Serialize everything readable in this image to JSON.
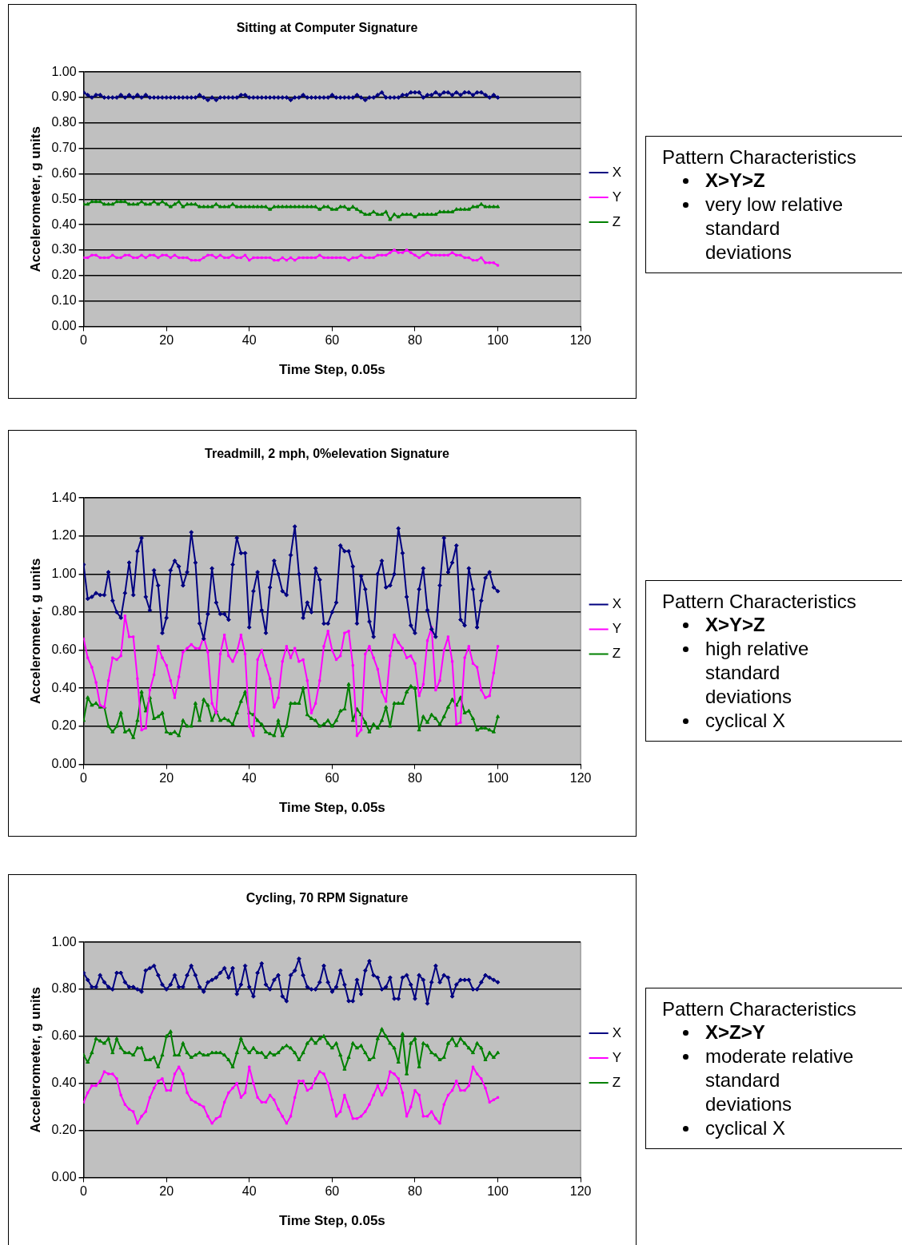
{
  "chart_data": [
    {
      "type": "line",
      "title": "Sitting at Computer Signature",
      "xlabel": "Time Step, 0.05s",
      "ylabel": "Accelerometer, g units",
      "x": [
        0,
        1,
        2,
        3,
        4,
        5,
        6,
        7,
        8,
        9,
        10,
        11,
        12,
        13,
        14,
        15,
        16,
        17,
        18,
        19,
        20,
        21,
        22,
        23,
        24,
        25,
        26,
        27,
        28,
        29,
        30,
        31,
        32,
        33,
        34,
        35,
        36,
        37,
        38,
        39,
        40,
        41,
        42,
        43,
        44,
        45,
        46,
        47,
        48,
        49,
        50,
        51,
        52,
        53,
        54,
        55,
        56,
        57,
        58,
        59,
        60,
        61,
        62,
        63,
        64,
        65,
        66,
        67,
        68,
        69,
        70,
        71,
        72,
        73,
        74,
        75,
        76,
        77,
        78,
        79,
        80,
        81,
        82,
        83,
        84,
        85,
        86,
        87,
        88,
        89,
        90,
        91,
        92,
        93,
        94,
        95,
        96,
        97,
        98,
        99,
        100
      ],
      "xlim": [
        0,
        120
      ],
      "xticks": [
        0,
        20,
        40,
        60,
        80,
        100,
        120
      ],
      "ylim": [
        0,
        1
      ],
      "yticks": [
        {
          "value": 0,
          "label": "0.00"
        },
        {
          "value": 0.1,
          "label": "0.10"
        },
        {
          "value": 0.2,
          "label": "0.20"
        },
        {
          "value": 0.3,
          "label": "0.30"
        },
        {
          "value": 0.4,
          "label": "0.40"
        },
        {
          "value": 0.5,
          "label": "0.50"
        },
        {
          "value": 0.6,
          "label": "0.60"
        },
        {
          "value": 0.7,
          "label": "0.70"
        },
        {
          "value": 0.8,
          "label": "0.80"
        },
        {
          "value": 0.9,
          "label": "0.90"
        },
        {
          "value": 1,
          "label": "1.00"
        }
      ],
      "grid": "y",
      "legend": "right",
      "line_style": "solid",
      "series": [
        {
          "name": "X",
          "color": "#000080",
          "marker": "diamond",
          "values": [
            0.92,
            0.91,
            0.9,
            0.91,
            0.91,
            0.9,
            0.9,
            0.9,
            0.9,
            0.91,
            0.9,
            0.91,
            0.9,
            0.91,
            0.9,
            0.91,
            0.9,
            0.9,
            0.9,
            0.9,
            0.9,
            0.9,
            0.9,
            0.9,
            0.9,
            0.9,
            0.9,
            0.9,
            0.91,
            0.9,
            0.89,
            0.9,
            0.89,
            0.9,
            0.9,
            0.9,
            0.9,
            0.9,
            0.91,
            0.91,
            0.9,
            0.9,
            0.9,
            0.9,
            0.9,
            0.9,
            0.9,
            0.9,
            0.9,
            0.9,
            0.89,
            0.9,
            0.9,
            0.91,
            0.9,
            0.9,
            0.9,
            0.9,
            0.9,
            0.9,
            0.91,
            0.9,
            0.9,
            0.9,
            0.9,
            0.9,
            0.91,
            0.9,
            0.89,
            0.9,
            0.9,
            0.91,
            0.92,
            0.9,
            0.9,
            0.9,
            0.9,
            0.91,
            0.91,
            0.92,
            0.92,
            0.92,
            0.9,
            0.91,
            0.91,
            0.92,
            0.91,
            0.92,
            0.92,
            0.91,
            0.92,
            0.91,
            0.92,
            0.92,
            0.91,
            0.92,
            0.92,
            0.91,
            0.9,
            0.91,
            0.9
          ]
        },
        {
          "name": "Y",
          "color": "#ff00ff",
          "marker": "square",
          "values": [
            0.27,
            0.27,
            0.28,
            0.28,
            0.27,
            0.27,
            0.27,
            0.28,
            0.27,
            0.27,
            0.28,
            0.28,
            0.27,
            0.27,
            0.28,
            0.27,
            0.28,
            0.28,
            0.27,
            0.28,
            0.28,
            0.27,
            0.28,
            0.27,
            0.27,
            0.27,
            0.26,
            0.26,
            0.26,
            0.27,
            0.28,
            0.28,
            0.27,
            0.28,
            0.27,
            0.27,
            0.28,
            0.27,
            0.27,
            0.28,
            0.26,
            0.27,
            0.27,
            0.27,
            0.27,
            0.27,
            0.26,
            0.26,
            0.27,
            0.26,
            0.27,
            0.26,
            0.27,
            0.27,
            0.27,
            0.27,
            0.27,
            0.28,
            0.27,
            0.27,
            0.27,
            0.27,
            0.27,
            0.27,
            0.26,
            0.27,
            0.27,
            0.28,
            0.27,
            0.27,
            0.27,
            0.28,
            0.28,
            0.28,
            0.29,
            0.3,
            0.29,
            0.29,
            0.3,
            0.29,
            0.28,
            0.27,
            0.28,
            0.29,
            0.28,
            0.28,
            0.28,
            0.28,
            0.28,
            0.29,
            0.28,
            0.28,
            0.27,
            0.27,
            0.26,
            0.26,
            0.27,
            0.25,
            0.25,
            0.25,
            0.24
          ]
        },
        {
          "name": "Z",
          "color": "#008000",
          "marker": "triangle",
          "values": [
            0.48,
            0.48,
            0.49,
            0.49,
            0.49,
            0.48,
            0.48,
            0.48,
            0.49,
            0.49,
            0.49,
            0.48,
            0.48,
            0.48,
            0.49,
            0.48,
            0.48,
            0.49,
            0.48,
            0.49,
            0.48,
            0.47,
            0.48,
            0.49,
            0.47,
            0.48,
            0.48,
            0.48,
            0.47,
            0.47,
            0.47,
            0.47,
            0.48,
            0.47,
            0.47,
            0.47,
            0.48,
            0.47,
            0.47,
            0.47,
            0.47,
            0.47,
            0.47,
            0.47,
            0.47,
            0.46,
            0.47,
            0.47,
            0.47,
            0.47,
            0.47,
            0.47,
            0.47,
            0.47,
            0.47,
            0.47,
            0.47,
            0.46,
            0.47,
            0.47,
            0.46,
            0.46,
            0.47,
            0.47,
            0.46,
            0.47,
            0.46,
            0.45,
            0.44,
            0.44,
            0.45,
            0.44,
            0.44,
            0.45,
            0.42,
            0.44,
            0.43,
            0.44,
            0.44,
            0.44,
            0.43,
            0.44,
            0.44,
            0.44,
            0.44,
            0.44,
            0.45,
            0.45,
            0.45,
            0.45,
            0.46,
            0.46,
            0.46,
            0.46,
            0.47,
            0.47,
            0.48,
            0.47,
            0.47,
            0.47,
            0.47
          ]
        }
      ]
    },
    {
      "type": "other",
      "title": "Pattern Characteristics",
      "annotations": [
        "X>Y>Z",
        "very low relative standard deviations"
      ]
    },
    {
      "type": "line",
      "title": "Treadmill, 2 mph, 0%elevation Signature",
      "xlabel": "Time Step, 0.05s",
      "ylabel": "Accelerometer, g units",
      "x": [
        0,
        1,
        2,
        3,
        4,
        5,
        6,
        7,
        8,
        9,
        10,
        11,
        12,
        13,
        14,
        15,
        16,
        17,
        18,
        19,
        20,
        21,
        22,
        23,
        24,
        25,
        26,
        27,
        28,
        29,
        30,
        31,
        32,
        33,
        34,
        35,
        36,
        37,
        38,
        39,
        40,
        41,
        42,
        43,
        44,
        45,
        46,
        47,
        48,
        49,
        50,
        51,
        52,
        53,
        54,
        55,
        56,
        57,
        58,
        59,
        60,
        61,
        62,
        63,
        64,
        65,
        66,
        67,
        68,
        69,
        70,
        71,
        72,
        73,
        74,
        75,
        76,
        77,
        78,
        79,
        80,
        81,
        82,
        83,
        84,
        85,
        86,
        87,
        88,
        89,
        90,
        91,
        92,
        93,
        94,
        95,
        96,
        97,
        98,
        99,
        100
      ],
      "xlim": [
        0,
        120
      ],
      "xticks": [
        0,
        20,
        40,
        60,
        80,
        100,
        120
      ],
      "ylim": [
        0,
        1.4
      ],
      "yticks": [
        {
          "value": 0,
          "label": "0.00"
        },
        {
          "value": 0.2,
          "label": "0.20"
        },
        {
          "value": 0.4,
          "label": "0.40"
        },
        {
          "value": 0.6,
          "label": "0.60"
        },
        {
          "value": 0.8,
          "label": "0.80"
        },
        {
          "value": 1,
          "label": "1.00"
        },
        {
          "value": 1.2,
          "label": "1.20"
        },
        {
          "value": 1.4,
          "label": "1.40"
        }
      ],
      "grid": "y",
      "legend": "right",
      "line_style": "solid",
      "series": [
        {
          "name": "X",
          "color": "#000080",
          "marker": "diamond",
          "values": [
            1.05,
            0.87,
            0.88,
            0.9,
            0.89,
            0.89,
            1.01,
            0.86,
            0.8,
            0.77,
            0.9,
            1.06,
            0.89,
            1.12,
            1.19,
            0.88,
            0.81,
            1.02,
            0.94,
            0.69,
            0.77,
            1.02,
            1.07,
            1.04,
            0.94,
            1.01,
            1.22,
            1.06,
            0.74,
            0.66,
            0.79,
            1.03,
            0.85,
            0.79,
            0.79,
            0.76,
            1.05,
            1.19,
            1.11,
            1.11,
            0.72,
            0.91,
            1.01,
            0.81,
            0.69,
            0.93,
            1.07,
            1.0,
            0.91,
            0.89,
            1.1,
            1.25,
            1.0,
            0.77,
            0.85,
            0.8,
            1.03,
            0.97,
            0.74,
            0.74,
            0.8,
            0.85,
            1.15,
            1.12,
            1.12,
            1.04,
            0.74,
            0.99,
            0.92,
            0.75,
            0.67,
            1.0,
            1.07,
            0.93,
            0.94,
            1.0,
            1.24,
            1.11,
            0.88,
            0.73,
            0.69,
            0.92,
            1.03,
            0.81,
            0.71,
            0.67,
            0.94,
            1.19,
            1.01,
            1.06,
            1.15,
            0.76,
            0.73,
            1.03,
            0.92,
            0.72,
            0.86,
            0.98,
            1.01,
            0.93,
            0.91
          ]
        },
        {
          "name": "Y",
          "color": "#ff00ff",
          "marker": "square",
          "values": [
            0.66,
            0.56,
            0.51,
            0.43,
            0.31,
            0.3,
            0.44,
            0.56,
            0.55,
            0.57,
            0.78,
            0.67,
            0.67,
            0.45,
            0.18,
            0.19,
            0.39,
            0.47,
            0.62,
            0.56,
            0.52,
            0.44,
            0.35,
            0.46,
            0.59,
            0.61,
            0.63,
            0.61,
            0.61,
            0.67,
            0.59,
            0.32,
            0.27,
            0.58,
            0.68,
            0.57,
            0.54,
            0.59,
            0.68,
            0.58,
            0.2,
            0.15,
            0.55,
            0.6,
            0.52,
            0.45,
            0.3,
            0.35,
            0.54,
            0.62,
            0.56,
            0.61,
            0.54,
            0.55,
            0.44,
            0.27,
            0.32,
            0.44,
            0.62,
            0.7,
            0.6,
            0.55,
            0.57,
            0.69,
            0.7,
            0.52,
            0.15,
            0.18,
            0.58,
            0.62,
            0.56,
            0.5,
            0.38,
            0.33,
            0.57,
            0.68,
            0.64,
            0.61,
            0.56,
            0.57,
            0.53,
            0.36,
            0.42,
            0.65,
            0.72,
            0.39,
            0.44,
            0.6,
            0.67,
            0.54,
            0.21,
            0.22,
            0.56,
            0.62,
            0.53,
            0.51,
            0.39,
            0.35,
            0.36,
            0.48,
            0.62
          ]
        },
        {
          "name": "Z",
          "color": "#008000",
          "marker": "triangle",
          "values": [
            0.23,
            0.35,
            0.31,
            0.32,
            0.3,
            0.3,
            0.2,
            0.17,
            0.2,
            0.27,
            0.17,
            0.18,
            0.14,
            0.23,
            0.38,
            0.28,
            0.35,
            0.24,
            0.25,
            0.27,
            0.17,
            0.16,
            0.17,
            0.15,
            0.23,
            0.2,
            0.2,
            0.32,
            0.23,
            0.34,
            0.31,
            0.23,
            0.28,
            0.23,
            0.24,
            0.23,
            0.21,
            0.27,
            0.33,
            0.38,
            0.27,
            0.26,
            0.23,
            0.21,
            0.17,
            0.16,
            0.15,
            0.23,
            0.15,
            0.2,
            0.32,
            0.32,
            0.32,
            0.4,
            0.26,
            0.24,
            0.23,
            0.2,
            0.21,
            0.23,
            0.2,
            0.23,
            0.28,
            0.29,
            0.42,
            0.23,
            0.29,
            0.26,
            0.22,
            0.17,
            0.21,
            0.19,
            0.23,
            0.3,
            0.2,
            0.32,
            0.32,
            0.32,
            0.38,
            0.41,
            0.4,
            0.18,
            0.25,
            0.22,
            0.26,
            0.24,
            0.21,
            0.25,
            0.3,
            0.34,
            0.31,
            0.35,
            0.27,
            0.28,
            0.24,
            0.18,
            0.19,
            0.19,
            0.18,
            0.17,
            0.25
          ]
        }
      ]
    },
    {
      "type": "other",
      "title": "Pattern Characteristics",
      "annotations": [
        "X>Y>Z",
        "high relative standard deviations",
        "cyclical X"
      ]
    },
    {
      "type": "line",
      "title": "Cycling, 70 RPM Signature",
      "xlabel": "Time Step, 0.05s",
      "ylabel": "Accelerometer, g units",
      "x": [
        0,
        1,
        2,
        3,
        4,
        5,
        6,
        7,
        8,
        9,
        10,
        11,
        12,
        13,
        14,
        15,
        16,
        17,
        18,
        19,
        20,
        21,
        22,
        23,
        24,
        25,
        26,
        27,
        28,
        29,
        30,
        31,
        32,
        33,
        34,
        35,
        36,
        37,
        38,
        39,
        40,
        41,
        42,
        43,
        44,
        45,
        46,
        47,
        48,
        49,
        50,
        51,
        52,
        53,
        54,
        55,
        56,
        57,
        58,
        59,
        60,
        61,
        62,
        63,
        64,
        65,
        66,
        67,
        68,
        69,
        70,
        71,
        72,
        73,
        74,
        75,
        76,
        77,
        78,
        79,
        80,
        81,
        82,
        83,
        84,
        85,
        86,
        87,
        88,
        89,
        90,
        91,
        92,
        93,
        94,
        95,
        96,
        97,
        98,
        99,
        100
      ],
      "xlim": [
        0,
        120
      ],
      "xticks": [
        0,
        20,
        40,
        60,
        80,
        100,
        120
      ],
      "ylim": [
        0,
        1
      ],
      "yticks": [
        {
          "value": 0,
          "label": "0.00"
        },
        {
          "value": 0.2,
          "label": "0.20"
        },
        {
          "value": 0.4,
          "label": "0.40"
        },
        {
          "value": 0.6,
          "label": "0.60"
        },
        {
          "value": 0.8,
          "label": "0.80"
        },
        {
          "value": 1,
          "label": "1.00"
        }
      ],
      "grid": "y",
      "legend": "right",
      "line_style": "solid",
      "series": [
        {
          "name": "X",
          "color": "#000080",
          "marker": "diamond",
          "values": [
            0.87,
            0.84,
            0.81,
            0.81,
            0.86,
            0.83,
            0.81,
            0.8,
            0.87,
            0.87,
            0.83,
            0.81,
            0.81,
            0.8,
            0.79,
            0.88,
            0.89,
            0.9,
            0.86,
            0.82,
            0.8,
            0.82,
            0.86,
            0.81,
            0.81,
            0.86,
            0.9,
            0.86,
            0.81,
            0.79,
            0.83,
            0.84,
            0.85,
            0.87,
            0.89,
            0.85,
            0.89,
            0.78,
            0.82,
            0.9,
            0.81,
            0.77,
            0.87,
            0.91,
            0.82,
            0.8,
            0.84,
            0.86,
            0.77,
            0.75,
            0.86,
            0.88,
            0.93,
            0.86,
            0.81,
            0.8,
            0.8,
            0.83,
            0.9,
            0.83,
            0.79,
            0.81,
            0.88,
            0.82,
            0.75,
            0.75,
            0.84,
            0.78,
            0.88,
            0.92,
            0.86,
            0.85,
            0.8,
            0.81,
            0.85,
            0.76,
            0.76,
            0.85,
            0.86,
            0.82,
            0.76,
            0.86,
            0.84,
            0.74,
            0.83,
            0.9,
            0.83,
            0.86,
            0.85,
            0.77,
            0.82,
            0.84,
            0.84,
            0.84,
            0.8,
            0.8,
            0.83,
            0.86,
            0.85,
            0.84,
            0.83
          ]
        },
        {
          "name": "Y",
          "color": "#ff00ff",
          "marker": "square",
          "values": [
            0.32,
            0.36,
            0.39,
            0.39,
            0.41,
            0.45,
            0.44,
            0.44,
            0.42,
            0.35,
            0.31,
            0.29,
            0.28,
            0.23,
            0.26,
            0.28,
            0.34,
            0.38,
            0.41,
            0.42,
            0.37,
            0.37,
            0.44,
            0.47,
            0.44,
            0.36,
            0.33,
            0.32,
            0.31,
            0.3,
            0.26,
            0.23,
            0.25,
            0.26,
            0.32,
            0.36,
            0.38,
            0.4,
            0.34,
            0.36,
            0.47,
            0.4,
            0.34,
            0.32,
            0.32,
            0.35,
            0.33,
            0.29,
            0.26,
            0.23,
            0.26,
            0.34,
            0.41,
            0.41,
            0.37,
            0.38,
            0.42,
            0.45,
            0.44,
            0.4,
            0.33,
            0.26,
            0.28,
            0.35,
            0.3,
            0.25,
            0.25,
            0.26,
            0.28,
            0.31,
            0.35,
            0.39,
            0.35,
            0.38,
            0.45,
            0.44,
            0.42,
            0.36,
            0.26,
            0.3,
            0.37,
            0.35,
            0.26,
            0.26,
            0.28,
            0.25,
            0.23,
            0.31,
            0.35,
            0.37,
            0.41,
            0.37,
            0.37,
            0.39,
            0.47,
            0.44,
            0.42,
            0.38,
            0.32,
            0.33,
            0.34
          ]
        },
        {
          "name": "Z",
          "color": "#008000",
          "marker": "triangle",
          "values": [
            0.52,
            0.49,
            0.53,
            0.59,
            0.58,
            0.57,
            0.59,
            0.53,
            0.59,
            0.55,
            0.53,
            0.53,
            0.52,
            0.55,
            0.55,
            0.5,
            0.5,
            0.51,
            0.47,
            0.52,
            0.6,
            0.62,
            0.52,
            0.52,
            0.57,
            0.53,
            0.51,
            0.52,
            0.53,
            0.52,
            0.52,
            0.53,
            0.53,
            0.53,
            0.52,
            0.5,
            0.47,
            0.53,
            0.59,
            0.55,
            0.53,
            0.55,
            0.53,
            0.53,
            0.51,
            0.53,
            0.52,
            0.53,
            0.55,
            0.56,
            0.55,
            0.53,
            0.5,
            0.53,
            0.57,
            0.59,
            0.57,
            0.59,
            0.6,
            0.57,
            0.55,
            0.57,
            0.52,
            0.46,
            0.51,
            0.57,
            0.55,
            0.56,
            0.53,
            0.5,
            0.51,
            0.59,
            0.63,
            0.6,
            0.57,
            0.55,
            0.49,
            0.61,
            0.44,
            0.57,
            0.59,
            0.47,
            0.57,
            0.56,
            0.53,
            0.52,
            0.5,
            0.51,
            0.57,
            0.59,
            0.56,
            0.59,
            0.57,
            0.55,
            0.53,
            0.57,
            0.55,
            0.5,
            0.53,
            0.51,
            0.53
          ]
        }
      ]
    },
    {
      "type": "other",
      "title": "Pattern Characteristics",
      "annotations": [
        "X>Z>Y",
        "moderate relative standard deviations",
        "cyclical X"
      ]
    }
  ]
}
